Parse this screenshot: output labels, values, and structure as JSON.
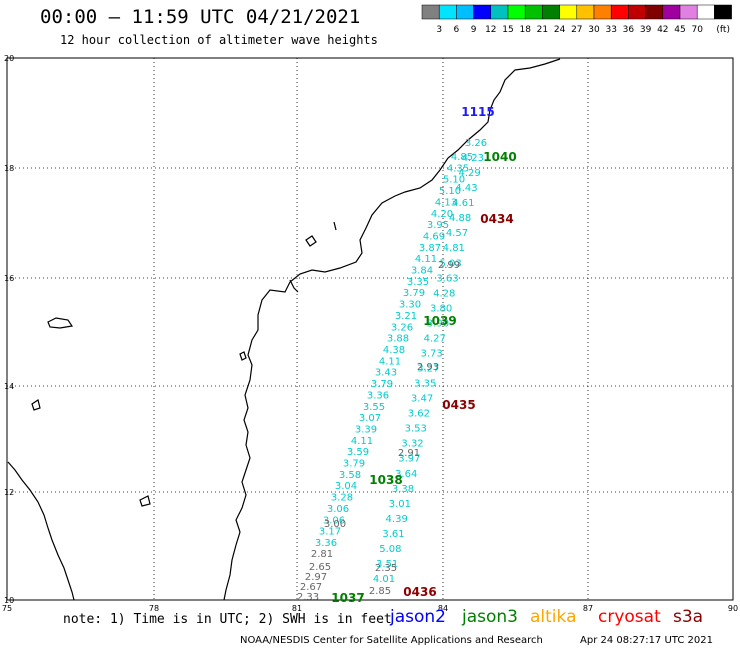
{
  "title": "00:00 – 11:59 UTC 04/21/2021",
  "subtitle": "12 hour collection of altimeter wave heights",
  "colorbar": {
    "ticks": [
      "3",
      "6",
      "9",
      "12",
      "15",
      "18",
      "21",
      "24",
      "27",
      "30",
      "33",
      "36",
      "39",
      "42",
      "45",
      "70"
    ],
    "unit": "(ft)",
    "colors": [
      "#808080",
      "#00e5ff",
      "#00bfff",
      "#0000ff",
      "#00c0c0",
      "#00ff00",
      "#00c000",
      "#008000",
      "#ffff00",
      "#ffc000",
      "#ff8000",
      "#ff0000",
      "#c00000",
      "#800000",
      "#a000a0",
      "#e080e0",
      "#ffffff",
      "#000000"
    ]
  },
  "axes": {
    "lon_ticks": [
      "75",
      "78",
      "81",
      "84",
      "87",
      "90"
    ],
    "lat_ticks": [
      "20",
      "18",
      "16",
      "14",
      "12",
      "10"
    ]
  },
  "tracks": [
    {
      "time": "1115",
      "color": "#1a1aff"
    },
    {
      "time": "1040",
      "color": "#008000"
    },
    {
      "time": "0434",
      "color": "#8b0000"
    },
    {
      "time": "1039",
      "color": "#008000"
    },
    {
      "time": "0435",
      "color": "#8b0000"
    },
    {
      "time": "1038",
      "color": "#008000"
    },
    {
      "time": "0436",
      "color": "#8b0000"
    },
    {
      "time": "1037",
      "color": "#008000"
    }
  ],
  "track_a": {
    "color": "#00cccc",
    "values": [
      "4.85",
      "4.35",
      "5.10",
      "5.10",
      "4.13",
      "4.20",
      "3.95",
      "4.69",
      "3.87",
      "4.11",
      "3.84",
      "3.35",
      "3.79",
      "3.30",
      "3.21",
      "3.26",
      "3.88",
      "4.38",
      "4.11",
      "3.43",
      "3.79",
      "3.36",
      "3.55",
      "3.07",
      "3.39",
      "4.11",
      "3.59",
      "3.79",
      "3.58",
      "3.04",
      "3.28",
      "3.06",
      "3.06",
      "3.17",
      "3.36"
    ]
  },
  "track_b": {
    "color": "#00cccc",
    "values": [
      "3.26",
      "4.23",
      "4.29",
      "4.43",
      "4.61",
      "4.88",
      "4.57",
      "4.81",
      "5.03",
      "3.63",
      "4.28",
      "3.80",
      "3.90",
      "4.27",
      "3.73",
      "3.27",
      "3.35",
      "3.47",
      "3.62",
      "3.53",
      "3.32",
      "3.97",
      "3.64",
      "3.38",
      "3.01",
      "4.39",
      "3.61",
      "5.08",
      "3.51",
      "4.01"
    ]
  },
  "gray_values": {
    "color": "#666666",
    "values": [
      "2.99",
      "2.93",
      "2.91",
      "3.00",
      "2.81",
      "2.65",
      "2.97",
      "2.67",
      "2.33",
      "2.35",
      "2.85"
    ]
  },
  "note": "note: 1) Time is in UTC; 2) SWH is in feet",
  "satellites": [
    {
      "name": "jason2",
      "color": "#0000ff"
    },
    {
      "name": "jason3",
      "color": "#008000"
    },
    {
      "name": "altika",
      "color": "#ffa500"
    },
    {
      "name": "cryosat",
      "color": "#ff0000"
    },
    {
      "name": "s3a",
      "color": "#8b0000"
    }
  ],
  "credit": "NOAA/NESDIS Center for Satellite Applications and Research",
  "timestamp": "Apr 24 08:27:17 UTC 2021"
}
